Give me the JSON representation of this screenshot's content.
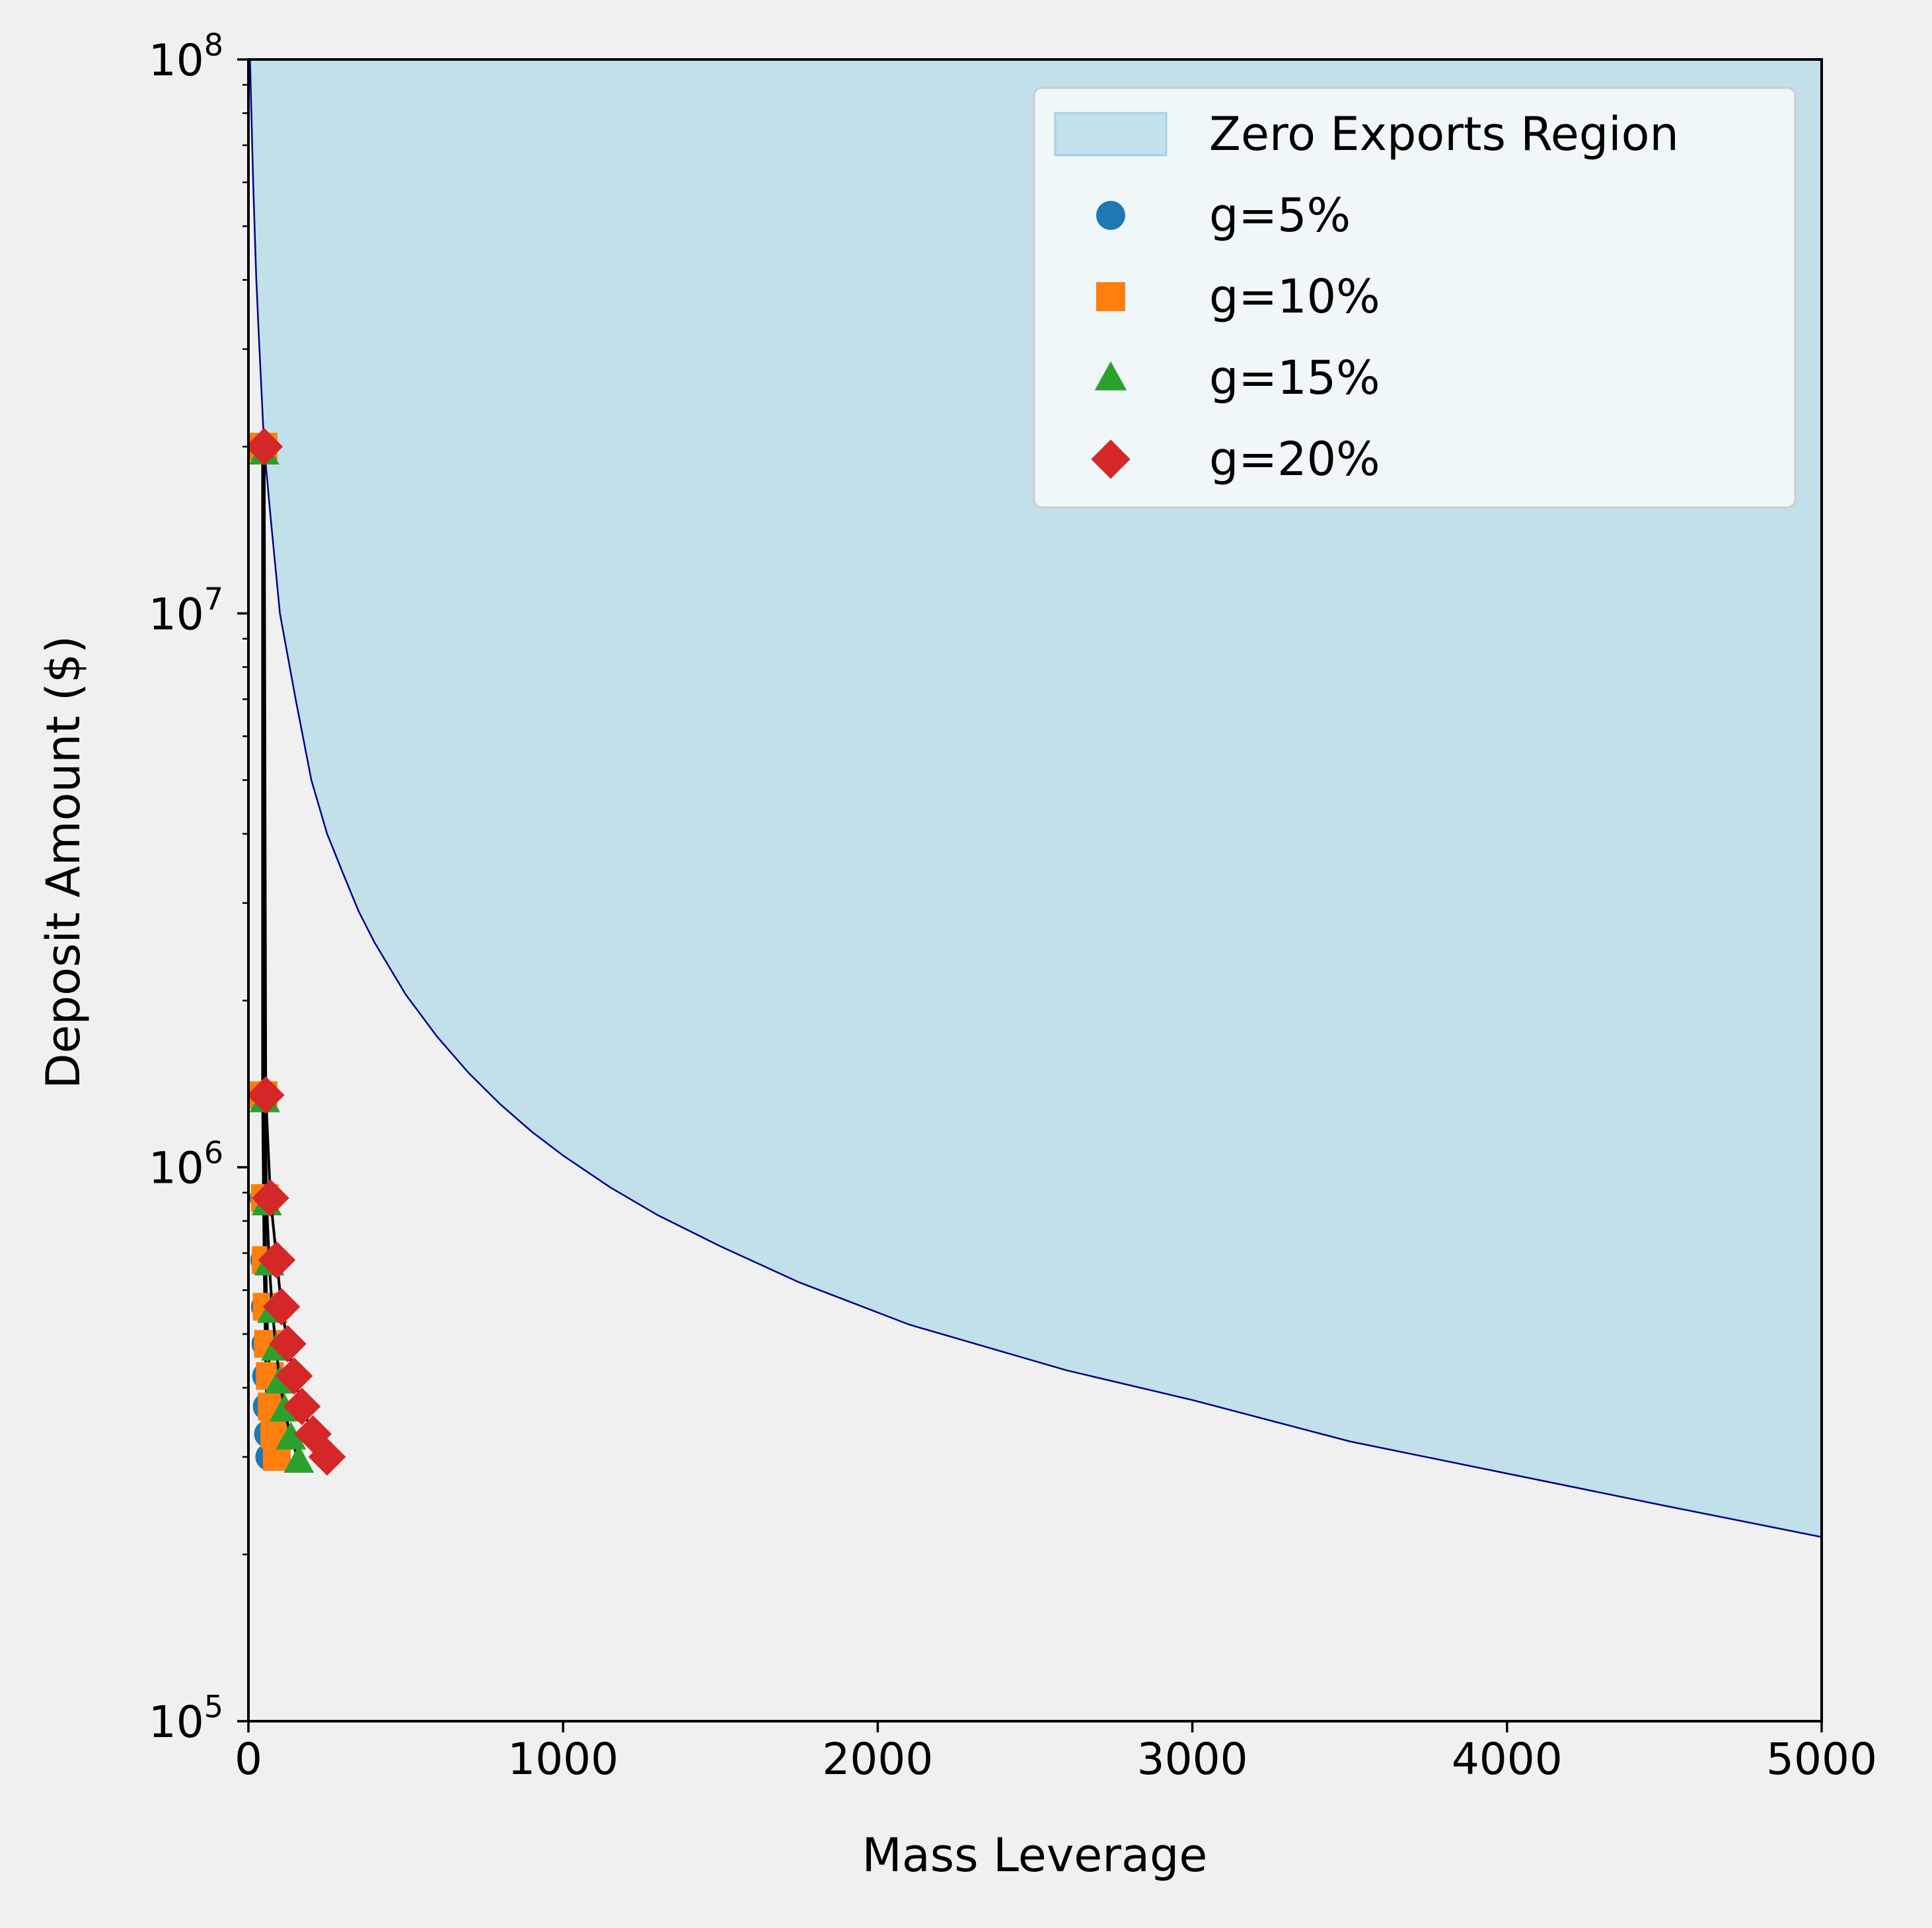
{
  "chart_data": {
    "type": "scatter",
    "title": "",
    "xlabel": "Mass Leverage",
    "ylabel": "Deposit Amount ($)",
    "xlim": [
      0,
      5000
    ],
    "ylim": [
      100000,
      100000000
    ],
    "yscale": "log",
    "grid": false,
    "legend_position": "top-right",
    "x_ticks": [
      {
        "value": 0,
        "label": "0"
      },
      {
        "value": 1000,
        "label": "1000"
      },
      {
        "value": 2000,
        "label": "2000"
      },
      {
        "value": 3000,
        "label": "3000"
      },
      {
        "value": 4000,
        "label": "4000"
      },
      {
        "value": 5000,
        "label": "5000"
      }
    ],
    "y_ticks": [
      {
        "value": 100000,
        "base": "10",
        "exp": "5"
      },
      {
        "value": 1000000,
        "base": "10",
        "exp": "6"
      },
      {
        "value": 10000000,
        "base": "10",
        "exp": "7"
      },
      {
        "value": 100000000,
        "base": "10",
        "exp": "8"
      }
    ],
    "region": {
      "name": "Zero Exports Region",
      "fill_color": "#add8e6",
      "edge_color": "#00008b",
      "boundary": [
        [
          5,
          100000000
        ],
        [
          15,
          60000000
        ],
        [
          25,
          40000000
        ],
        [
          35,
          30000000
        ],
        [
          50,
          20000000
        ],
        [
          70,
          15000000
        ],
        [
          100,
          10000000
        ],
        [
          150,
          7000000
        ],
        [
          200,
          5000000
        ],
        [
          250,
          4000000
        ],
        [
          300,
          3400000
        ],
        [
          350,
          2900000
        ],
        [
          400,
          2550000
        ],
        [
          500,
          2050000
        ],
        [
          600,
          1720000
        ],
        [
          700,
          1480000
        ],
        [
          800,
          1300000
        ],
        [
          900,
          1160000
        ],
        [
          1000,
          1050000
        ],
        [
          1150,
          920000
        ],
        [
          1300,
          820000
        ],
        [
          1500,
          720000
        ],
        [
          1750,
          620000
        ],
        [
          2100,
          520000
        ],
        [
          2600,
          430000
        ],
        [
          3000,
          380000
        ],
        [
          3500,
          320000
        ],
        [
          4000,
          280000
        ],
        [
          4500,
          245000
        ],
        [
          5000,
          215000
        ]
      ]
    },
    "series": [
      {
        "name": "g=5%",
        "marker": "circle",
        "color": "#1f77b4",
        "points": [
          [
            45,
            20000000
          ],
          [
            45,
            1350000
          ],
          [
            48,
            880000
          ],
          [
            50,
            680000
          ],
          [
            52,
            560000
          ],
          [
            54,
            480000
          ],
          [
            56,
            420000
          ],
          [
            58,
            370000
          ],
          [
            62,
            330000
          ],
          [
            66,
            300000
          ]
        ]
      },
      {
        "name": "g=10%",
        "marker": "square",
        "color": "#ff7f0e",
        "points": [
          [
            48,
            20000000
          ],
          [
            48,
            1350000
          ],
          [
            52,
            880000
          ],
          [
            55,
            680000
          ],
          [
            58,
            560000
          ],
          [
            62,
            480000
          ],
          [
            68,
            420000
          ],
          [
            74,
            370000
          ],
          [
            82,
            330000
          ],
          [
            90,
            300000
          ]
        ]
      },
      {
        "name": "g=15%",
        "marker": "triangle",
        "color": "#2ca02c",
        "points": [
          [
            50,
            19500000
          ],
          [
            52,
            1320000
          ],
          [
            58,
            860000
          ],
          [
            66,
            670000
          ],
          [
            76,
            550000
          ],
          [
            88,
            470000
          ],
          [
            100,
            410000
          ],
          [
            115,
            365000
          ],
          [
            135,
            325000
          ],
          [
            160,
            295000
          ]
        ]
      },
      {
        "name": "g=20%",
        "marker": "diamond",
        "color": "#d62728",
        "points": [
          [
            50,
            20000000
          ],
          [
            55,
            1350000
          ],
          [
            70,
            880000
          ],
          [
            90,
            680000
          ],
          [
            105,
            560000
          ],
          [
            125,
            480000
          ],
          [
            145,
            420000
          ],
          [
            170,
            370000
          ],
          [
            205,
            330000
          ],
          [
            250,
            300000
          ]
        ]
      }
    ]
  }
}
